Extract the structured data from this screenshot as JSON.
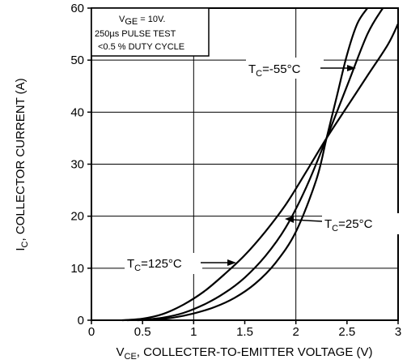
{
  "chart_data": {
    "type": "line",
    "xlabel_main": "V",
    "xlabel_sub": "CE",
    "xlabel_rest": ", COLLECTER-TO-EMITTER VOLTAGE (V)",
    "ylabel_main": "I",
    "ylabel_sub": "C",
    "ylabel_rest": ", COLLECTOR CURRENT (A)",
    "xlim": [
      0,
      3
    ],
    "ylim": [
      0,
      60
    ],
    "xticks": [
      0,
      0.5,
      1,
      1.5,
      2,
      2.5,
      3
    ],
    "xtick_labels": [
      "0",
      "0.5",
      "1",
      "1.5",
      "2",
      "2.5",
      "3"
    ],
    "yticks": [
      0,
      10,
      20,
      30,
      40,
      50,
      60
    ],
    "ytick_labels": [
      "0",
      "10",
      "20",
      "30",
      "40",
      "50",
      "60"
    ],
    "grid": true,
    "conditions": {
      "line1_main": "V",
      "line1_sub": "GE",
      "line1_rest": " = 10V.",
      "line2": "250µs PULSE TEST",
      "line3": "<0.5 % DUTY CYCLE"
    },
    "series": [
      {
        "name_main": "T",
        "name_sub": "C",
        "name_rest": "=-55°C",
        "x": [
          0.45,
          0.6,
          0.8,
          1.0,
          1.2,
          1.4,
          1.6,
          1.8,
          2.0,
          2.2,
          2.3,
          2.4,
          2.5,
          2.6,
          2.7
        ],
        "y": [
          0,
          0.1,
          0.5,
          1.3,
          2.5,
          4.3,
          7,
          11,
          17,
          27,
          35,
          43,
          51,
          57,
          60
        ]
      },
      {
        "name_main": "T",
        "name_sub": "C",
        "name_rest": "=25°C",
        "x": [
          0.35,
          0.5,
          0.7,
          0.9,
          1.1,
          1.3,
          1.5,
          1.7,
          1.9,
          2.1,
          2.3,
          2.5,
          2.7,
          2.85
        ],
        "y": [
          0,
          0.1,
          0.5,
          1.4,
          3,
          5.2,
          8.2,
          12.3,
          17.8,
          25.5,
          35,
          45,
          55,
          60
        ]
      },
      {
        "name_main": "T",
        "name_sub": "C",
        "name_rest": "=125°C",
        "x": [
          0.3,
          0.5,
          0.7,
          0.9,
          1.1,
          1.3,
          1.5,
          1.7,
          1.9,
          2.1,
          2.3,
          2.5,
          2.7,
          2.9,
          3.0
        ],
        "y": [
          0,
          0.3,
          1.2,
          3,
          5.5,
          8.8,
          12.5,
          17,
          22.2,
          28.5,
          35,
          41,
          47,
          53,
          57
        ]
      }
    ]
  }
}
